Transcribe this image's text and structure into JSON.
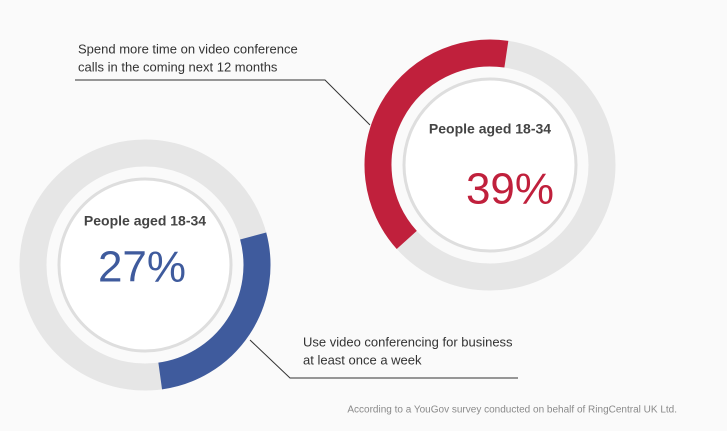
{
  "chart_data": [
    {
      "type": "donut",
      "title": "People aged 18-34",
      "values": [
        39
      ],
      "value_labels": [
        "39%"
      ],
      "ylim": [
        0,
        100
      ],
      "color": "#c0203c",
      "track_color": "#e6e6e6",
      "annotation": [
        "Spend more time on video conference",
        "calls in the coming next 12 months"
      ]
    },
    {
      "type": "donut",
      "title": "People aged 18-34",
      "values": [
        27
      ],
      "value_labels": [
        "27%"
      ],
      "ylim": [
        0,
        100
      ],
      "color": "#3f5b9d",
      "track_color": "#e6e6e6",
      "annotation": [
        "Use video conferencing for business",
        "at least once a week"
      ]
    }
  ],
  "footnote": "According to a YouGov survey conducted on behalf of RingCentral UK Ltd."
}
